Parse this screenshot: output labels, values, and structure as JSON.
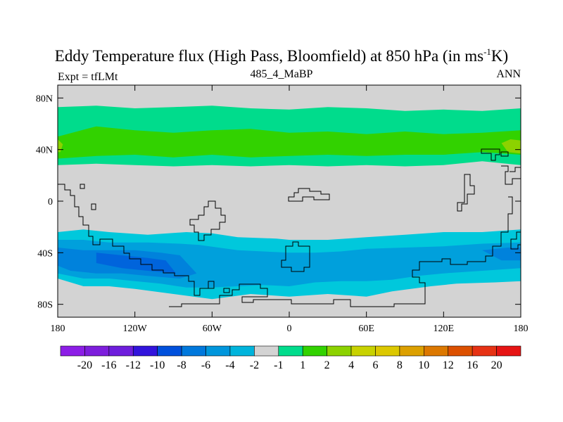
{
  "header": {
    "title_main": "Eddy Temperature flux (High Pass, Bloomfield) at 850 hPa (in ms",
    "title_sup": "-1",
    "title_tail": "K)",
    "left_label": "Expt = tfLMt",
    "center_label": "485_4_MaBP",
    "right_label": "ANN"
  },
  "chart_data": {
    "type": "heatmap",
    "title": "Eddy Temperature flux (High Pass, Bloomfield) at 850 hPa (in ms-1K)",
    "projection": "cylindrical equidistant",
    "xlim": [
      -180,
      180
    ],
    "ylim": [
      -90,
      90
    ],
    "x_ticks": [
      {
        "value": -180,
        "label": "180"
      },
      {
        "value": -120,
        "label": "120W"
      },
      {
        "value": -60,
        "label": "60W"
      },
      {
        "value": 0,
        "label": "0"
      },
      {
        "value": 60,
        "label": "60E"
      },
      {
        "value": 120,
        "label": "120E"
      },
      {
        "value": 180,
        "label": "180"
      }
    ],
    "y_ticks": [
      {
        "value": 80,
        "label": "80N"
      },
      {
        "value": 40,
        "label": "40N"
      },
      {
        "value": 0,
        "label": "0"
      },
      {
        "value": -40,
        "label": "40S"
      },
      {
        "value": -80,
        "label": "80S"
      }
    ],
    "background_color": "#d3d3d3",
    "filled_regions": [
      {
        "name": "nh-outer-band",
        "level": "1 to 2",
        "color": "#00dc8c",
        "top": [
          [
            -180,
            73
          ],
          [
            -150,
            74
          ],
          [
            -120,
            72
          ],
          [
            -90,
            73
          ],
          [
            -60,
            74
          ],
          [
            -30,
            72
          ],
          [
            0,
            71
          ],
          [
            30,
            73
          ],
          [
            60,
            72
          ],
          [
            90,
            70
          ],
          [
            120,
            71
          ],
          [
            150,
            70
          ],
          [
            180,
            72
          ]
        ],
        "bottom": [
          [
            180,
            28
          ],
          [
            150,
            31
          ],
          [
            120,
            28
          ],
          [
            90,
            27
          ],
          [
            60,
            28
          ],
          [
            30,
            27
          ],
          [
            0,
            28
          ],
          [
            -30,
            27
          ],
          [
            -60,
            28
          ],
          [
            -90,
            27
          ],
          [
            -120,
            28
          ],
          [
            -150,
            29
          ],
          [
            -180,
            28
          ]
        ]
      },
      {
        "name": "nh-core-band",
        "level": "2 to 4",
        "color": "#32d200",
        "top": [
          [
            -180,
            50
          ],
          [
            -150,
            58
          ],
          [
            -120,
            55
          ],
          [
            -90,
            53
          ],
          [
            -60,
            55
          ],
          [
            -30,
            56
          ],
          [
            0,
            53
          ],
          [
            30,
            54
          ],
          [
            60,
            52
          ],
          [
            90,
            54
          ],
          [
            120,
            52
          ],
          [
            150,
            53
          ],
          [
            180,
            55
          ]
        ],
        "bottom": [
          [
            180,
            36
          ],
          [
            150,
            38
          ],
          [
            120,
            36
          ],
          [
            90,
            36
          ],
          [
            60,
            35
          ],
          [
            30,
            36
          ],
          [
            0,
            35
          ],
          [
            -30,
            34
          ],
          [
            -60,
            36
          ],
          [
            -90,
            34
          ],
          [
            -120,
            36
          ],
          [
            -150,
            35
          ],
          [
            -180,
            33
          ]
        ]
      },
      {
        "name": "nh-peak-west",
        "level": "4 to 6",
        "color": "#8cd200",
        "top": [
          [
            -180,
            48
          ],
          [
            -176,
            44
          ],
          [
            -178,
            38
          ]
        ],
        "bottom": [
          [
            -180,
            38
          ]
        ]
      },
      {
        "name": "nh-peak-east",
        "level": "4 to 6",
        "color": "#8cd200",
        "top": [
          [
            165,
            45
          ],
          [
            172,
            48
          ],
          [
            180,
            47
          ]
        ],
        "bottom": [
          [
            180,
            37
          ],
          [
            170,
            38
          ]
        ]
      },
      {
        "name": "sh-outer-band",
        "level": "-2 to -1",
        "color": "#00c8dc",
        "top": [
          [
            -180,
            -24
          ],
          [
            -160,
            -22
          ],
          [
            -140,
            -24
          ],
          [
            -110,
            -26
          ],
          [
            -80,
            -24
          ],
          [
            -60,
            -25
          ],
          [
            -40,
            -28
          ],
          [
            -10,
            -29
          ],
          [
            0,
            -30
          ],
          [
            30,
            -30
          ],
          [
            60,
            -28
          ],
          [
            90,
            -26
          ],
          [
            120,
            -24
          ],
          [
            150,
            -24
          ],
          [
            180,
            -22
          ]
        ],
        "bottom": [
          [
            180,
            -62
          ],
          [
            160,
            -63
          ],
          [
            130,
            -64
          ],
          [
            110,
            -66
          ],
          [
            80,
            -70
          ],
          [
            60,
            -74
          ],
          [
            30,
            -72
          ],
          [
            0,
            -74
          ],
          [
            -30,
            -72
          ],
          [
            -60,
            -76
          ],
          [
            -90,
            -72
          ],
          [
            -120,
            -68
          ],
          [
            -140,
            -66
          ],
          [
            -160,
            -66
          ],
          [
            -180,
            -60
          ]
        ]
      },
      {
        "name": "sh-mid-band",
        "level": "-4 to -2",
        "color": "#00a0dc",
        "top": [
          [
            -180,
            -30
          ],
          [
            -160,
            -30
          ],
          [
            -140,
            -32
          ],
          [
            -110,
            -32
          ],
          [
            -85,
            -33
          ],
          [
            -70,
            -34
          ],
          [
            -55,
            -36
          ],
          [
            -40,
            -38
          ],
          [
            -20,
            -39
          ],
          [
            0,
            -40
          ],
          [
            20,
            -40
          ],
          [
            40,
            -39
          ],
          [
            60,
            -37
          ],
          [
            90,
            -36
          ],
          [
            120,
            -35
          ],
          [
            150,
            -33
          ],
          [
            180,
            -32
          ]
        ],
        "bottom": [
          [
            180,
            -52
          ],
          [
            150,
            -54
          ],
          [
            120,
            -56
          ],
          [
            100,
            -58
          ],
          [
            80,
            -61
          ],
          [
            60,
            -62
          ],
          [
            40,
            -62
          ],
          [
            20,
            -63
          ],
          [
            0,
            -66
          ],
          [
            -20,
            -65
          ],
          [
            -40,
            -66
          ],
          [
            -60,
            -67
          ],
          [
            -80,
            -67
          ],
          [
            -100,
            -64
          ],
          [
            -120,
            -62
          ],
          [
            -140,
            -60
          ],
          [
            -160,
            -60
          ],
          [
            -180,
            -56
          ]
        ]
      },
      {
        "name": "sh-core",
        "level": "-6 to -4",
        "color": "#0082dc",
        "top": [
          [
            -180,
            -36
          ],
          [
            -160,
            -38
          ],
          [
            -140,
            -38
          ],
          [
            -120,
            -38
          ],
          [
            -100,
            -40
          ],
          [
            -85,
            -42
          ]
        ],
        "bottom": [
          [
            -72,
            -56
          ],
          [
            -85,
            -60
          ],
          [
            -110,
            -58
          ],
          [
            -130,
            -56
          ],
          [
            -150,
            -56
          ],
          [
            -170,
            -54
          ],
          [
            -180,
            -50
          ]
        ]
      },
      {
        "name": "sh-core-east",
        "level": "-6 to -4",
        "color": "#0082dc",
        "top": [
          [
            150,
            -38
          ],
          [
            170,
            -36
          ],
          [
            180,
            -36
          ]
        ],
        "bottom": [
          [
            180,
            -46
          ],
          [
            165,
            -46
          ]
        ]
      },
      {
        "name": "sh-peak",
        "level": "-8 to -6",
        "color": "#0064dc",
        "top": [
          [
            -150,
            -40
          ],
          [
            -130,
            -42
          ],
          [
            -110,
            -44
          ],
          [
            -96,
            -46
          ]
        ],
        "bottom": [
          [
            -88,
            -56
          ],
          [
            -110,
            -54
          ],
          [
            -130,
            -52
          ],
          [
            -150,
            -48
          ]
        ]
      }
    ],
    "colorbar": {
      "colors": [
        "#8c1ee6",
        "#7d1edc",
        "#6e1edc",
        "#3214dc",
        "#0050dc",
        "#0078dc",
        "#0096dc",
        "#00b4dc",
        "#d3d3d3",
        "#00dc8c",
        "#32d200",
        "#8cd200",
        "#c8d200",
        "#dcc800",
        "#dca000",
        "#dc7800",
        "#dc5000",
        "#e63214",
        "#e61414"
      ],
      "labels": [
        "-20",
        "-16",
        "-12",
        "-10",
        "-8",
        "-6",
        "-4",
        "-2",
        "-1",
        "1",
        "2",
        "4",
        "6",
        "8",
        "10",
        "12",
        "16",
        "20"
      ]
    }
  }
}
